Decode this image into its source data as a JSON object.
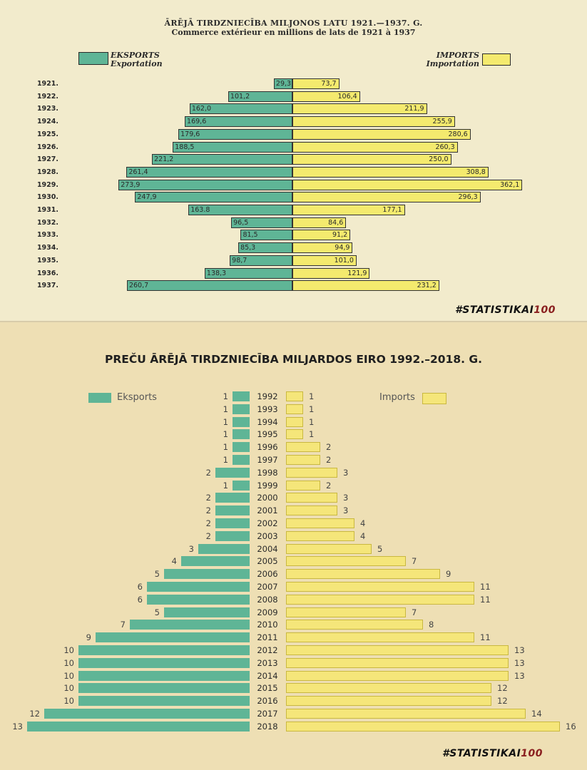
{
  "colors": {
    "export": "#5fb596",
    "import": "#f4ea6e",
    "export_modern": "#5fb596",
    "import_modern": "#f5e67a"
  },
  "top_chart": {
    "title_lv": "ĀRĒJĀ TIRDZNIECĪBA MILJONOS LATU 1921.—1937. G.",
    "title_fr": "Commerce extérieur en millions de lats de 1921 à 1937",
    "legend_export_1": "EKSPORTS",
    "legend_export_2": "Exportation",
    "legend_import_1": "IMPORTS",
    "legend_import_2": "Importation",
    "hashtag_text": "#STATISTIKAI",
    "hashtag_num": "100"
  },
  "bottom_chart": {
    "title": "PREČU ĀRĒJĀ TIRDZNIECĪBA MILJARDOS EIRO 1992.–2018. G.",
    "legend_export": "Eksports",
    "legend_import": "Imports",
    "hashtag_text": "#STATISTIKAI",
    "hashtag_num": "100"
  },
  "chart_data": [
    {
      "type": "bar",
      "title": "ĀRĒJĀ TIRDZNIECĪBA MILJONOS LATU 1921.—1937. G.",
      "subtitle": "Commerce extérieur en millions de lats de 1921 à 1937",
      "categories": [
        "1921.",
        "1922.",
        "1923.",
        "1924.",
        "1925.",
        "1926.",
        "1927.",
        "1928.",
        "1929.",
        "1930.",
        "1931.",
        "1932.",
        "1933.",
        "1934.",
        "1935.",
        "1936.",
        "1937."
      ],
      "series": [
        {
          "name": "EKSPORTS Exportation",
          "values": [
            29.3,
            101.2,
            162.0,
            169.6,
            179.6,
            188.5,
            221.2,
            261.4,
            273.9,
            247.9,
            163.8,
            96.5,
            81.5,
            85.3,
            98.7,
            138.3,
            260.7
          ],
          "labels": [
            "29,3",
            "101,2",
            "162,0",
            "169,6",
            "179,6",
            "188,5",
            "221,2",
            "261,4",
            "273,9",
            "247,9",
            "163.8",
            "96,5",
            "81,5",
            "85,3",
            "98,7",
            "138,3",
            "260,7"
          ]
        },
        {
          "name": "IMPORTS Importation",
          "values": [
            73.7,
            106.4,
            211.9,
            255.9,
            280.6,
            260.3,
            250.0,
            308.8,
            362.1,
            296.3,
            177.1,
            84.6,
            91.2,
            94.9,
            101.0,
            121.9,
            231.2
          ],
          "labels": [
            "73,7",
            "106,4",
            "211,9",
            "255,9",
            "280,6",
            "260,3",
            "250,0",
            "308,8",
            "362,1",
            "296,3",
            "177,1",
            "84,6",
            "91,2",
            "94,9",
            "101,0",
            "121,9",
            "231,2"
          ]
        }
      ]
    },
    {
      "type": "bar",
      "title": "PREČU ĀRĒJĀ TIRDZNIECĪBA MILJARDOS EIRO 1992.–2018. G.",
      "categories": [
        "1992",
        "1993",
        "1994",
        "1995",
        "1996",
        "1997",
        "1998",
        "1999",
        "2000",
        "2001",
        "2002",
        "2003",
        "2004",
        "2005",
        "2006",
        "2007",
        "2008",
        "2009",
        "2010",
        "2011",
        "2012",
        "2013",
        "2014",
        "2015",
        "2016",
        "2017",
        "2018"
      ],
      "series": [
        {
          "name": "Eksports",
          "values": [
            1,
            1,
            1,
            1,
            1,
            1,
            2,
            1,
            2,
            2,
            2,
            2,
            3,
            4,
            5,
            6,
            6,
            5,
            7,
            9,
            10,
            10,
            10,
            10,
            10,
            12,
            13
          ]
        },
        {
          "name": "Imports",
          "values": [
            1,
            1,
            1,
            1,
            2,
            2,
            3,
            2,
            3,
            3,
            4,
            4,
            5,
            7,
            9,
            11,
            11,
            7,
            8,
            11,
            13,
            13,
            13,
            12,
            12,
            14,
            16
          ]
        }
      ]
    }
  ]
}
